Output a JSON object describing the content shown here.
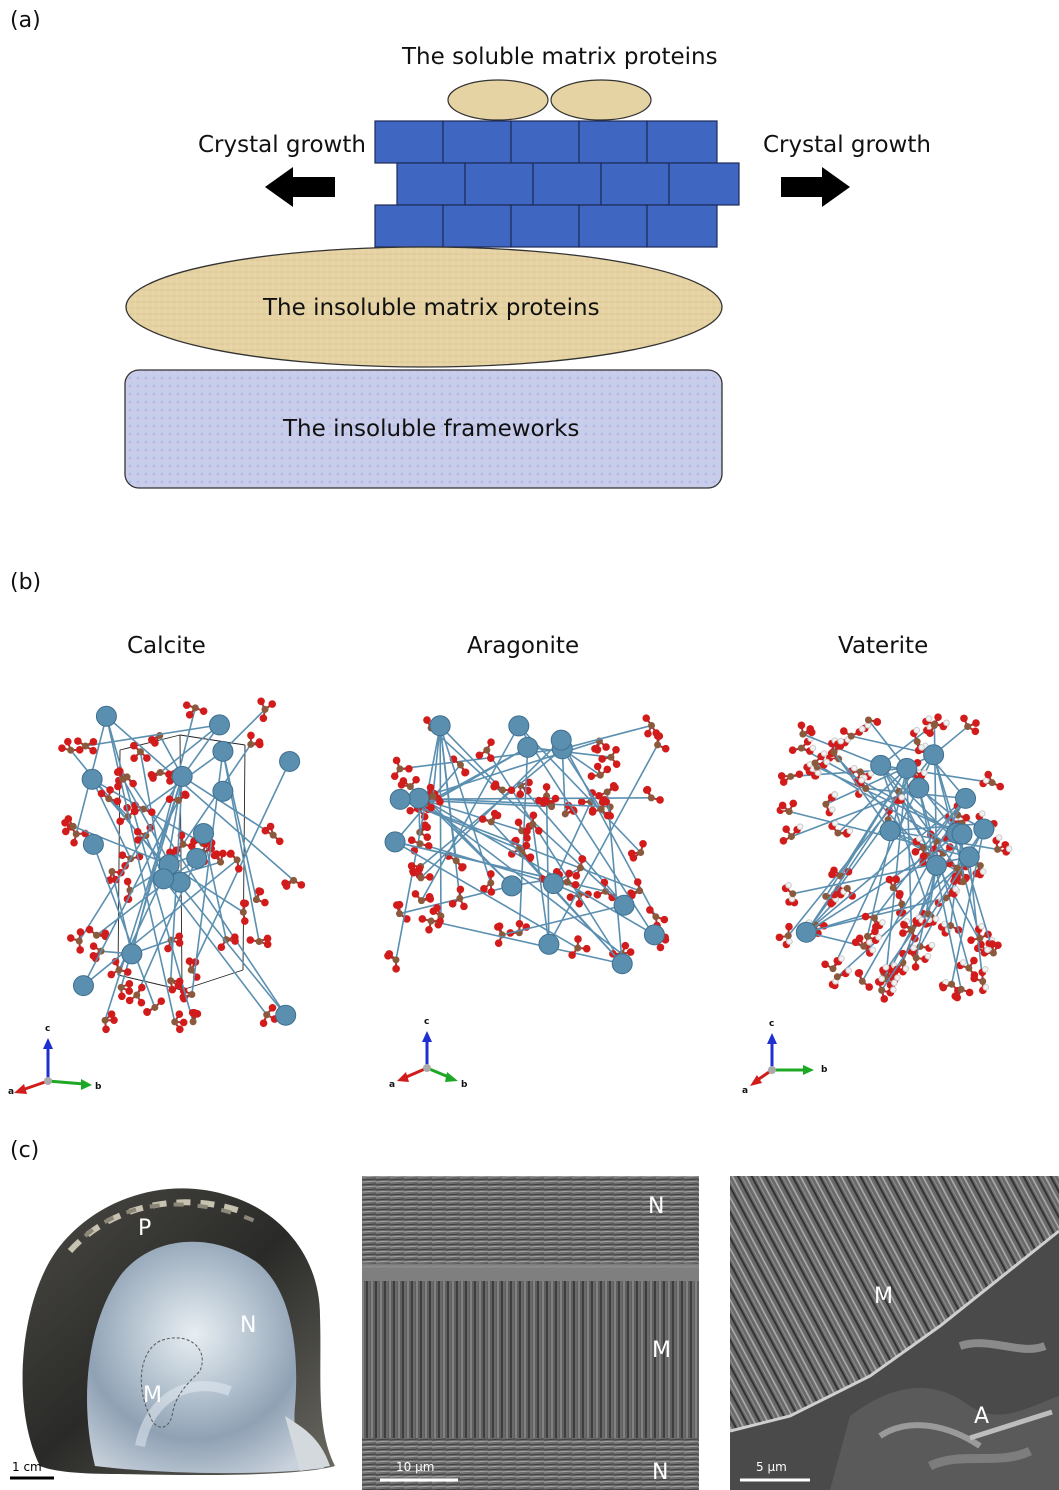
{
  "panels": {
    "a": {
      "label": "(a)",
      "soluble": "The soluble matrix proteins",
      "growth_left": "Crystal growth",
      "growth_right": "Crystal growth",
      "insoluble_proteins": "The insoluble matrix proteins",
      "insoluble_frameworks": "The insoluble frameworks"
    },
    "b": {
      "label": "(b)",
      "structures": [
        {
          "name": "Calcite",
          "axes": {
            "a": "a",
            "b": "b",
            "c": "c"
          }
        },
        {
          "name": "Aragonite",
          "axes": {
            "a": "a",
            "b": "b",
            "c": "c"
          }
        },
        {
          "name": "Vaterite",
          "axes": {
            "a": "a",
            "b": "b",
            "c": "c"
          }
        }
      ]
    },
    "c": {
      "label": "(c)",
      "shell": {
        "labels": {
          "p": "P",
          "n": "N",
          "m": "M"
        },
        "scale": "1 cm"
      },
      "sem1": {
        "labels": {
          "n_top": "N",
          "m": "M",
          "n_bottom": "N"
        },
        "scale": "10 μm"
      },
      "sem2": {
        "labels": {
          "m": "M",
          "a": "A"
        },
        "scale": "5 μm"
      }
    }
  },
  "colors": {
    "brick": "#3f66c0",
    "protein": "#e6d3a4",
    "framework": "#c9cdea",
    "oxygen": "#d21c1c",
    "carbon": "#8b5a3c",
    "calcium": "#5b8fb0"
  }
}
